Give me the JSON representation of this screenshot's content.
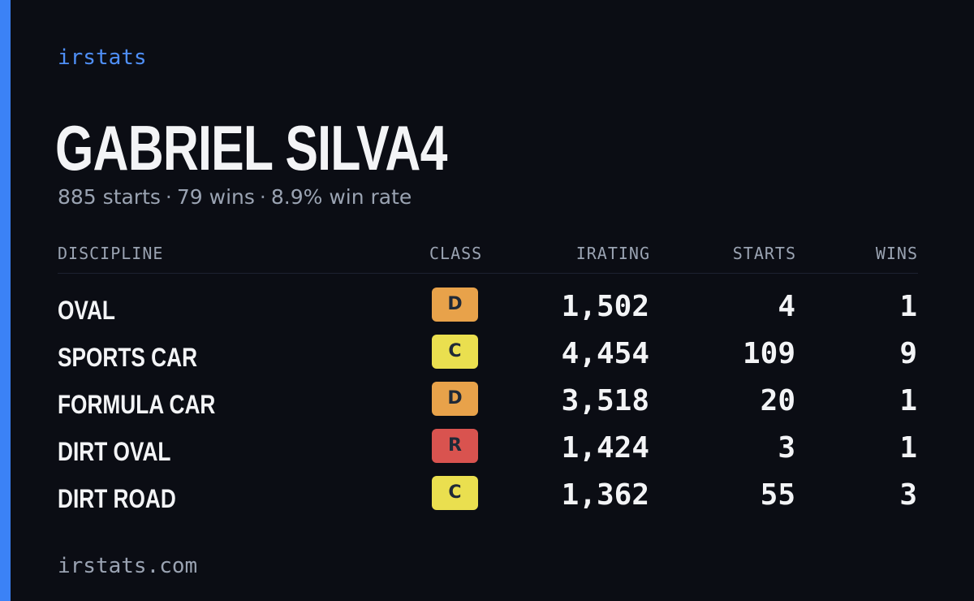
{
  "brand": "irstats",
  "driver": {
    "name": "GABRIEL SILVA4",
    "starts_text": "885 starts",
    "wins_text": "79 wins",
    "win_rate_text": "8.9% win rate",
    "separator": "·"
  },
  "table": {
    "headers": {
      "discipline": "DISCIPLINE",
      "class": "CLASS",
      "irating": "IRATING",
      "starts": "STARTS",
      "wins": "WINS"
    },
    "rows": [
      {
        "discipline": "OVAL",
        "class": "D",
        "irating": "1,502",
        "starts": "4",
        "wins": "1"
      },
      {
        "discipline": "SPORTS CAR",
        "class": "C",
        "irating": "4,454",
        "starts": "109",
        "wins": "9"
      },
      {
        "discipline": "FORMULA CAR",
        "class": "D",
        "irating": "3,518",
        "starts": "20",
        "wins": "1"
      },
      {
        "discipline": "DIRT OVAL",
        "class": "R",
        "irating": "1,424",
        "starts": "3",
        "wins": "1"
      },
      {
        "discipline": "DIRT ROAD",
        "class": "C",
        "irating": "1,362",
        "starts": "55",
        "wins": "3"
      }
    ]
  },
  "class_colors": {
    "D": "#e8a24a",
    "C": "#eadf4f",
    "R": "#d9534f"
  },
  "colors": {
    "accent": "#3b82f6",
    "background": "#0b0d14"
  },
  "footer": "irstats.com"
}
